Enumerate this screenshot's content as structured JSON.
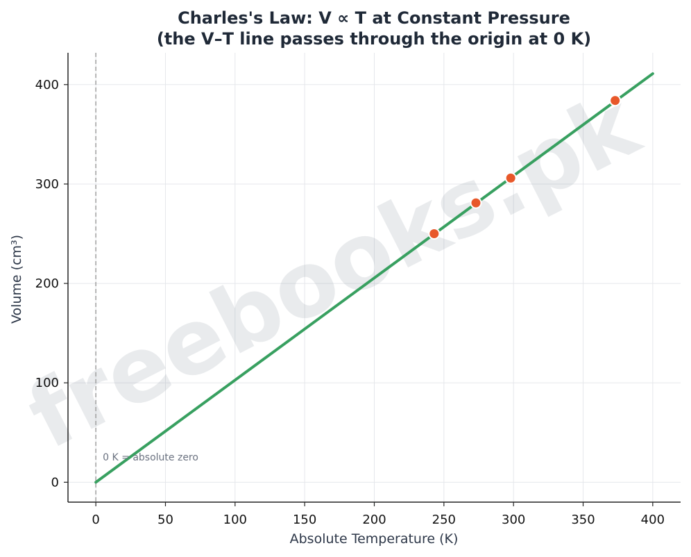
{
  "chart_data": {
    "type": "line",
    "title": [
      "Charles's Law: V ∝ T at Constant Pressure",
      "(the V–T line passes through the origin at 0 K)"
    ],
    "xlabel": "Absolute Temperature (K)",
    "ylabel": "Volume (cm³)",
    "xlim": [
      -20,
      420
    ],
    "ylim": [
      -20,
      432
    ],
    "xticks": [
      0,
      50,
      100,
      150,
      200,
      250,
      300,
      350,
      400
    ],
    "yticks": [
      0,
      100,
      200,
      300,
      400
    ],
    "grid": true,
    "line": {
      "x": [
        0,
        400
      ],
      "y": [
        0,
        411
      ],
      "color": "#38a060"
    },
    "points": {
      "x": [
        243,
        273,
        298,
        373
      ],
      "y": [
        250,
        281,
        306,
        384
      ],
      "color": "#e8582a"
    },
    "reference_line": {
      "x": 0,
      "style": "dashed",
      "color": "#9e9e9e"
    },
    "annotations": [
      {
        "text": "0 K = absolute zero",
        "x": 5,
        "y": 22
      }
    ],
    "watermark": "freebooks.pk"
  }
}
